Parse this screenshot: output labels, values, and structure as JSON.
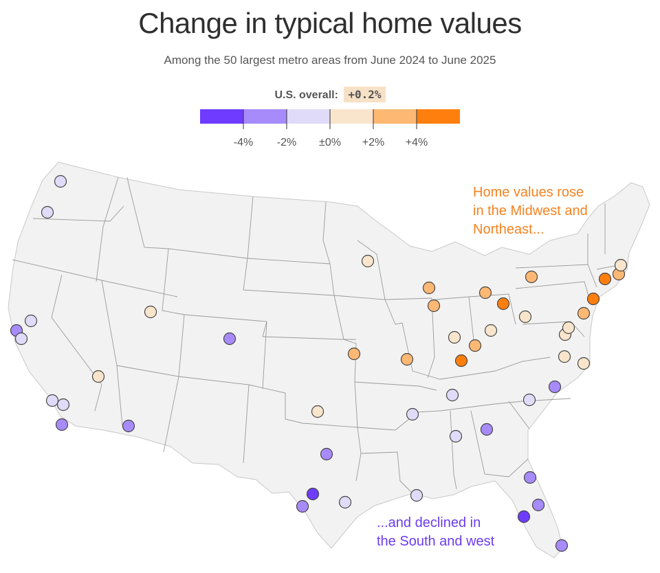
{
  "title": "Change in typical home values",
  "subtitle": "Among the 50 largest metro areas from June 2024 to June 2025",
  "overall": {
    "label": "U.S. overall:",
    "value": "+0.2%"
  },
  "legend": {
    "colors": [
      "#6f3cff",
      "#a78bfa",
      "#e0dbf8",
      "#f8e5cc",
      "#fdb874",
      "#ff7f0e"
    ],
    "ticks": [
      "-4%",
      "-2%",
      "±0%",
      "+2%",
      "+4%"
    ]
  },
  "annotations": {
    "rise_lines": [
      "Home values rose",
      "in the Midwest and",
      "Northeast..."
    ],
    "decline_lines": [
      "...and declined in",
      "the South and west"
    ],
    "rise_color": "#f58220",
    "decline_color": "#6a3cf0"
  },
  "map_colors": {
    "land": "#f2f2f2",
    "border": "#9a9a9a",
    "dot_stroke": "#444444"
  },
  "chart_data": {
    "type": "scatter",
    "encoding": "color bin of change in typical home value, June 2024 to June 2025",
    "bins": [
      "<-4%",
      "-4% to -2%",
      "-2% to 0%",
      "0% to +2%",
      "+2% to +4%",
      ">+4%"
    ],
    "points": [
      {
        "region": "Pacific Northwest",
        "bin": 2
      },
      {
        "region": "Pacific Northwest",
        "bin": 2
      },
      {
        "region": "California",
        "bin": 1
      },
      {
        "region": "California",
        "bin": 2
      },
      {
        "region": "California",
        "bin": 2
      },
      {
        "region": "California",
        "bin": 3
      },
      {
        "region": "California",
        "bin": 2
      },
      {
        "region": "California",
        "bin": 2
      },
      {
        "region": "California",
        "bin": 1
      },
      {
        "region": "Arizona",
        "bin": 1
      },
      {
        "region": "Utah",
        "bin": 3
      },
      {
        "region": "Colorado",
        "bin": 1
      },
      {
        "region": "Oklahoma",
        "bin": 3
      },
      {
        "region": "Texas",
        "bin": 1
      },
      {
        "region": "Texas",
        "bin": 0
      },
      {
        "region": "Texas",
        "bin": 1
      },
      {
        "region": "Texas",
        "bin": 2
      },
      {
        "region": "Minnesota",
        "bin": 3
      },
      {
        "region": "Missouri",
        "bin": 4
      },
      {
        "region": "Missouri",
        "bin": 4
      },
      {
        "region": "Wisconsin",
        "bin": 4
      },
      {
        "region": "Illinois",
        "bin": 4
      },
      {
        "region": "Indiana",
        "bin": 3
      },
      {
        "region": "Ohio",
        "bin": 4
      },
      {
        "region": "Ohio",
        "bin": 4
      },
      {
        "region": "Ohio",
        "bin": 3
      },
      {
        "region": "Ohio",
        "bin": 5
      },
      {
        "region": "Kentucky",
        "bin": 5
      },
      {
        "region": "Tennessee",
        "bin": 2
      },
      {
        "region": "Tennessee",
        "bin": 2
      },
      {
        "region": "Louisiana",
        "bin": 2
      },
      {
        "region": "Alabama",
        "bin": 2
      },
      {
        "region": "Georgia",
        "bin": 1
      },
      {
        "region": "Carolinas",
        "bin": 2
      },
      {
        "region": "Carolinas",
        "bin": 1
      },
      {
        "region": "Virginia",
        "bin": 3
      },
      {
        "region": "Virginia",
        "bin": 3
      },
      {
        "region": "Mid-Atlantic",
        "bin": 3
      },
      {
        "region": "Mid-Atlantic",
        "bin": 3
      },
      {
        "region": "Pennsylvania",
        "bin": 3
      },
      {
        "region": "Pennsylvania",
        "bin": 4
      },
      {
        "region": "New York",
        "bin": 4
      },
      {
        "region": "New York",
        "bin": 5
      },
      {
        "region": "New England",
        "bin": 5
      },
      {
        "region": "New England",
        "bin": 4
      },
      {
        "region": "New England",
        "bin": 3
      },
      {
        "region": "Florida",
        "bin": 1
      },
      {
        "region": "Florida",
        "bin": 0
      },
      {
        "region": "Florida",
        "bin": 1
      },
      {
        "region": "Florida",
        "bin": 1
      }
    ]
  }
}
